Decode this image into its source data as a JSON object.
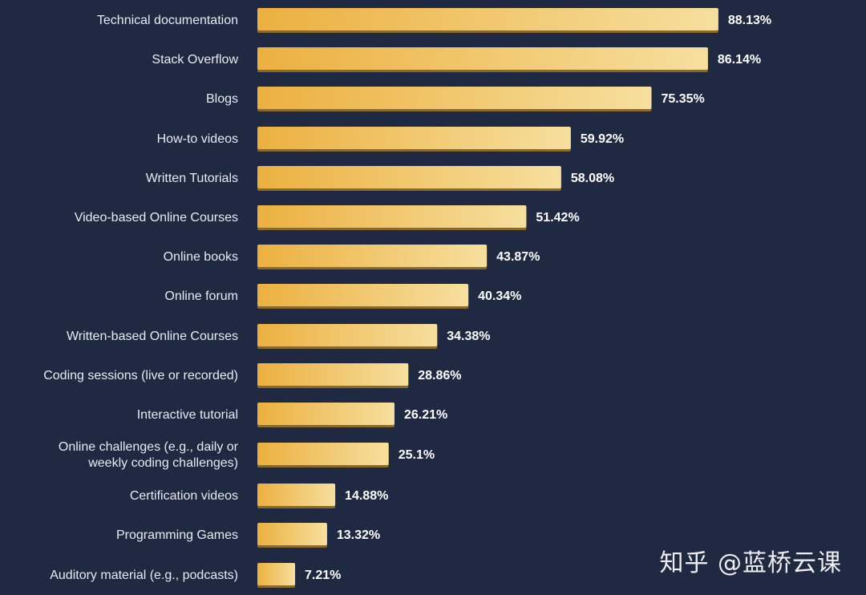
{
  "chart_data": {
    "type": "bar",
    "orientation": "horizontal",
    "categories": [
      "Technical documentation",
      "Stack Overflow",
      "Blogs",
      "How-to videos",
      "Written Tutorials",
      "Video-based Online Courses",
      "Online books",
      "Online forum",
      "Written-based Online Courses",
      "Coding sessions (live or recorded)",
      "Interactive tutorial",
      "Online challenges (e.g., daily or weekly coding challenges)",
      "Certification videos",
      "Programming Games",
      "Auditory material (e.g., podcasts)"
    ],
    "category_lines": [
      [
        "Technical documentation"
      ],
      [
        "Stack Overflow"
      ],
      [
        "Blogs"
      ],
      [
        "How-to videos"
      ],
      [
        "Written Tutorials"
      ],
      [
        "Video-based Online Courses"
      ],
      [
        "Online books"
      ],
      [
        "Online forum"
      ],
      [
        "Written-based Online Courses"
      ],
      [
        "Coding sessions (live or recorded)"
      ],
      [
        "Interactive tutorial"
      ],
      [
        "Online challenges (e.g., daily or",
        "weekly coding challenges)"
      ],
      [
        "Certification videos"
      ],
      [
        "Programming Games"
      ],
      [
        "Auditory material (e.g., podcasts)"
      ]
    ],
    "values": [
      88.13,
      86.14,
      75.35,
      59.92,
      58.08,
      51.42,
      43.87,
      40.34,
      34.38,
      28.86,
      26.21,
      25.1,
      14.88,
      13.32,
      7.21
    ],
    "value_labels": [
      "88.13%",
      "86.14%",
      "75.35%",
      "59.92%",
      "58.08%",
      "51.42%",
      "43.87%",
      "40.34%",
      "34.38%",
      "28.86%",
      "26.21%",
      "25.1%",
      "14.88%",
      "13.32%",
      "7.21%"
    ],
    "unit": "%",
    "xlim": [
      0,
      100
    ],
    "grid": false,
    "legend": "none",
    "colors": {
      "background": "#1f2942",
      "bar_start": "#ecb040",
      "bar_end": "#f6df9e",
      "bar_shadow": "#8a6a2c",
      "label": "#e8ebf2",
      "value": "#ffffff"
    }
  },
  "watermark": "知乎 @蓝桥云课"
}
